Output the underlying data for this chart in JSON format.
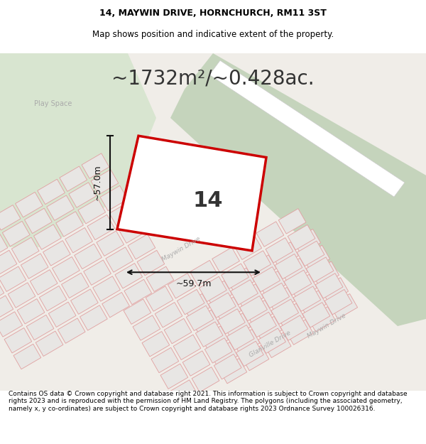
{
  "title_line1": "14, MAYWIN DRIVE, HORNCHURCH, RM11 3ST",
  "title_line2": "Map shows position and indicative extent of the property.",
  "area_text": "~1732m²/~0.428ac.",
  "property_number": "14",
  "dim_vertical": "~57.0m",
  "dim_horizontal": "~59.7m",
  "play_space_label": "Play Space",
  "maywin_drive_label1": "Maywin Drive",
  "maywin_drive_label2": "Maywin Drive",
  "glanville_drive_label": "Glanville Drive",
  "footer_text": "Contains OS data © Crown copyright and database right 2021. This information is subject to Crown copyright and database rights 2023 and is reproduced with the permission of HM Land Registry. The polygons (including the associated geometry, namely x, y co-ordinates) are subject to Crown copyright and database rights 2023 Ordnance Survey 100026316.",
  "bg_color": "#f5f5f0",
  "map_bg": "#f0ede8",
  "green_area_color": "#d8e4d0",
  "road_green_color": "#c8d8c0",
  "property_fill": "#ffffff",
  "property_edge": "#cc0000",
  "plot_block_color": "#e8e8e8",
  "plot_edge_color": "#e0a0a0",
  "road_color": "#e8e0d8",
  "dim_line_color": "#111111",
  "label_color": "#888888",
  "white_road_color": "#ffffff",
  "title_fontsize": 9,
  "subtitle_fontsize": 8.5,
  "area_fontsize": 20,
  "footer_fontsize": 6.5
}
